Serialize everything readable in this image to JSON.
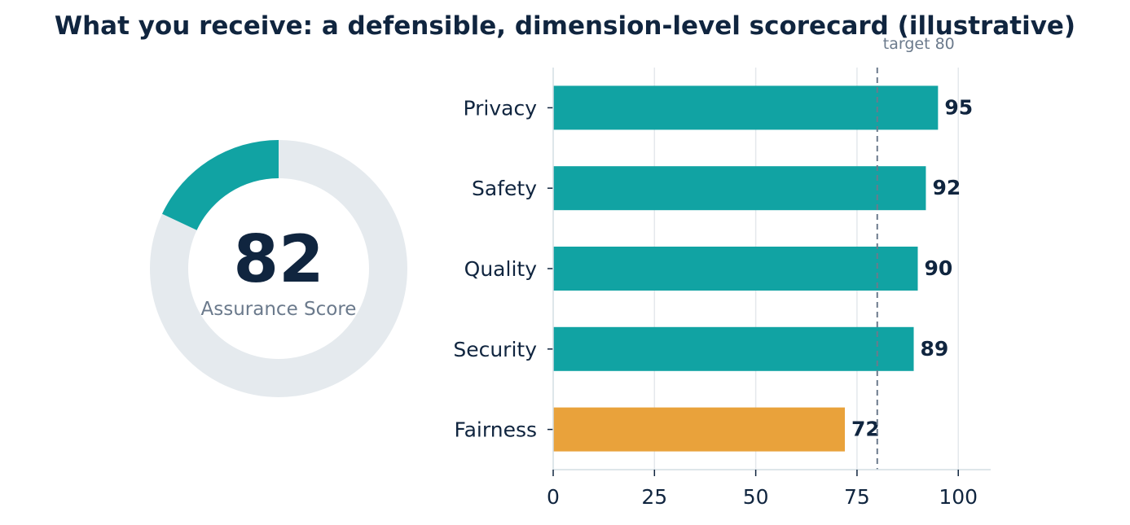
{
  "title": "What you receive: a defensible, dimension-level scorecard (illustrative)",
  "donut": {
    "value": 82,
    "max": 100,
    "label": "Assurance Score",
    "fill_color": "#11a3a3",
    "track_color": "#e5eaee"
  },
  "chart_data": {
    "type": "bar",
    "orientation": "horizontal",
    "categories": [
      "Privacy",
      "Safety",
      "Quality",
      "Security",
      "Fairness"
    ],
    "values": [
      95,
      92,
      90,
      89,
      72
    ],
    "colors": [
      "#11a3a3",
      "#11a3a3",
      "#11a3a3",
      "#11a3a3",
      "#e9a23b"
    ],
    "xlim": [
      0,
      108
    ],
    "xticks": [
      0,
      25,
      50,
      75,
      100
    ],
    "grid": "vertical",
    "target": {
      "value": 80,
      "label": "target 80"
    },
    "xlabel": "",
    "ylabel": ""
  }
}
